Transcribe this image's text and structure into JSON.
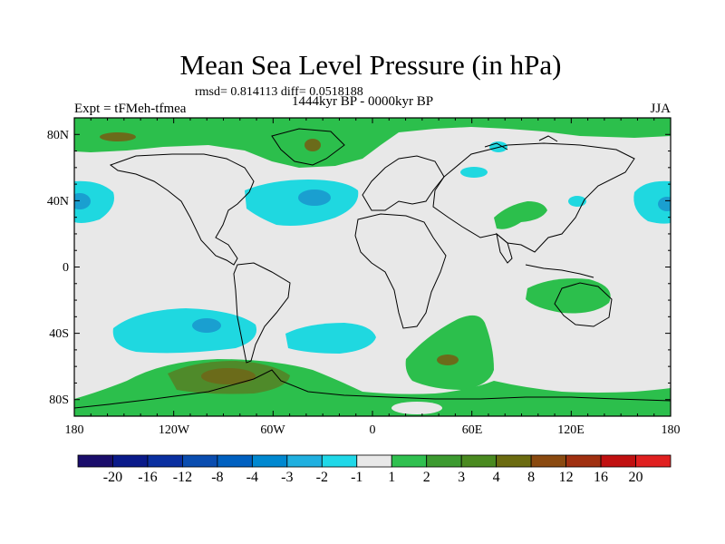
{
  "title": "Mean Sea Level Pressure (in hPa)",
  "stats": "rmsd= 0.814113 diff= 0.0518188",
  "period": "1444kyr BP - 0000kyr BP",
  "experiment": "Expt = tFMeh-tfmea",
  "season": "JJA",
  "lat_labels": [
    "80N",
    "40N",
    "0",
    "40S",
    "80S"
  ],
  "lon_labels": [
    "180",
    "120W",
    "60W",
    "0",
    "60E",
    "120E",
    "180"
  ],
  "colorbar": {
    "labels": [
      "-20",
      "-16",
      "-12",
      "-8",
      "-4",
      "-3",
      "-2",
      "-1",
      "1",
      "2",
      "3",
      "4",
      "8",
      "12",
      "16",
      "20"
    ],
    "colors": [
      "#1a0d6b",
      "#0a1a8a",
      "#0a2fa0",
      "#0a4db0",
      "#0060c0",
      "#0088d0",
      "#20b0e0",
      "#20d8e8",
      "#e8e8e8",
      "#30c050",
      "#3c9a30",
      "#4a8a20",
      "#6b6b10",
      "#8a4a10",
      "#a03010",
      "#c01010",
      "#e02020"
    ]
  },
  "colors": {
    "land_line": "#000000",
    "neutral": "#e8e8e8",
    "green": "#2cbf4c",
    "olive": "#6b6b1a",
    "cyan": "#1fd8e0",
    "blue": "#1a9fd0"
  }
}
